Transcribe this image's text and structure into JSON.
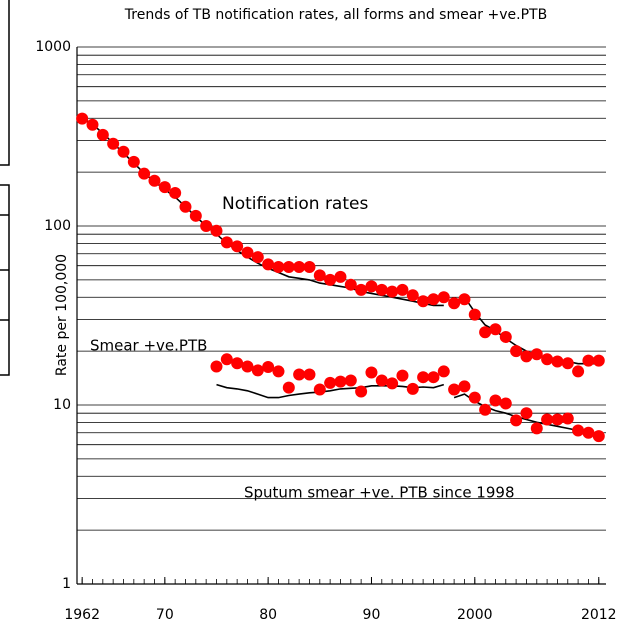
{
  "chart_data": {
    "type": "line",
    "title": "Trends of TB notification rates, all forms and smear +ve.PTB",
    "y_label": "Rate per 100,000",
    "annotations": [
      "Notification rates",
      "Smear +ve.PTB",
      "Sputum smear +ve. PTB since 1998"
    ],
    "log_y": true,
    "grid": true,
    "xlim": [
      1961.5,
      2012.7
    ],
    "ylim": [
      1,
      1000
    ],
    "xticks": [
      1962,
      {
        "value": 1970,
        "label": "70"
      },
      {
        "value": 1980,
        "label": "80"
      },
      {
        "value": 1990,
        "label": "90"
      },
      2000,
      2012
    ],
    "yticks": [
      1,
      10,
      100,
      1000
    ],
    "series": [
      {
        "marker": "circle",
        "color": "#ff0000",
        "x": [
          1962,
          1963,
          1964,
          1965,
          1966,
          1967,
          1968,
          1969,
          1970,
          1971,
          1972,
          1973,
          1974,
          1975,
          1976,
          1977,
          1978,
          1979,
          1980,
          1981,
          1982,
          1983,
          1984,
          1985,
          1986,
          1987,
          1988,
          1989,
          1990,
          1991,
          1992,
          1993,
          1994,
          1995,
          1996,
          1997,
          1998,
          1999,
          2000,
          2001,
          2002,
          2003,
          2004,
          2005,
          2006,
          2007,
          2008,
          2009,
          2010,
          2011,
          2012
        ],
        "values": [
          398,
          368,
          323,
          288,
          260,
          228,
          196,
          179,
          165,
          153,
          128,
          114,
          100,
          94,
          81,
          77,
          71,
          67,
          61,
          59,
          59,
          59,
          59,
          53,
          50,
          52,
          47,
          44,
          46,
          44,
          43,
          44,
          41,
          38,
          39,
          40,
          37,
          39,
          32,
          25.5,
          26.5,
          24,
          20,
          18.7,
          19.2,
          18,
          17.5,
          17.1,
          15.4,
          17.7,
          17.7
        ]
      },
      {
        "marker": "circle",
        "color": "#ff0000",
        "x": [
          1975,
          1976,
          1977,
          1978,
          1979,
          1980,
          1981,
          1982,
          1983,
          1984,
          1985,
          1986,
          1987,
          1988,
          1989,
          1990,
          1991,
          1992,
          1993,
          1994,
          1995,
          1996,
          1997,
          1998,
          1999,
          2000,
          2001,
          2002,
          2003,
          2004,
          2005,
          2006,
          2007,
          2008,
          2009,
          2010,
          2011,
          2012
        ],
        "values": [
          16.4,
          18,
          17.1,
          16.4,
          15.6,
          16.3,
          15.4,
          12.5,
          14.8,
          14.8,
          12.2,
          13.3,
          13.5,
          13.7,
          11.9,
          15.2,
          13.7,
          13.2,
          14.6,
          12.3,
          14.3,
          14.3,
          15.4,
          12.2,
          12.7,
          11,
          9.4,
          10.6,
          10.2,
          8.2,
          9,
          7.4,
          8.3,
          8.3,
          8.4,
          7.2,
          7,
          6.7
        ]
      },
      {
        "marker": "none",
        "color": "#000000",
        "x": [
          1962,
          1963,
          1964,
          1965,
          1966,
          1967,
          1968,
          1969,
          1970,
          1971,
          1972,
          1973,
          1974,
          1975,
          1976,
          1977,
          1978,
          1979,
          1980,
          1981,
          1982,
          1983,
          1984,
          1985,
          1986,
          1987,
          1988,
          1989,
          1990,
          1991,
          1992,
          1993,
          1994,
          1995,
          1996,
          1997
        ],
        "values": [
          400,
          370,
          330,
          290,
          255,
          225,
          197,
          177,
          160,
          145,
          128,
          113,
          100,
          90,
          80,
          73,
          67,
          62,
          58,
          55,
          52,
          51,
          50,
          48,
          47,
          46,
          45,
          43,
          42,
          41,
          40,
          39,
          38,
          37,
          36,
          36
        ]
      },
      {
        "marker": "none",
        "color": "#000000",
        "x": [
          1998,
          1999,
          2000,
          2001,
          2002,
          2003,
          2004,
          2005,
          2006,
          2007,
          2008,
          2009,
          2010,
          2011,
          2012
        ],
        "values": [
          38,
          40,
          33,
          28,
          26,
          23.5,
          21.5,
          20,
          19,
          18.5,
          18,
          17.5,
          17,
          17,
          17
        ]
      },
      {
        "marker": "none",
        "color": "#000000",
        "x": [
          1975,
          1976,
          1977,
          1978,
          1979,
          1980,
          1981,
          1982,
          1983,
          1984,
          1985,
          1986,
          1987,
          1988,
          1989,
          1990,
          1991,
          1992,
          1993,
          1994,
          1995,
          1996,
          1997
        ],
        "values": [
          13,
          12.5,
          12.3,
          12,
          11.5,
          11,
          11,
          11.3,
          11.5,
          11.7,
          11.8,
          12,
          12.3,
          12.4,
          12.5,
          12.8,
          12.8,
          12.8,
          12.7,
          12.5,
          12.6,
          12.5,
          13
        ]
      },
      {
        "marker": "none",
        "color": "#000000",
        "x": [
          1998,
          1999,
          2000,
          2001,
          2002,
          2003,
          2004,
          2005,
          2006,
          2007,
          2008,
          2009,
          2010,
          2011,
          2012
        ],
        "values": [
          11,
          11.5,
          10.5,
          9.8,
          9.3,
          9,
          8.6,
          8.3,
          8,
          7.8,
          7.6,
          7.4,
          7.2,
          7,
          6.9
        ]
      }
    ]
  }
}
